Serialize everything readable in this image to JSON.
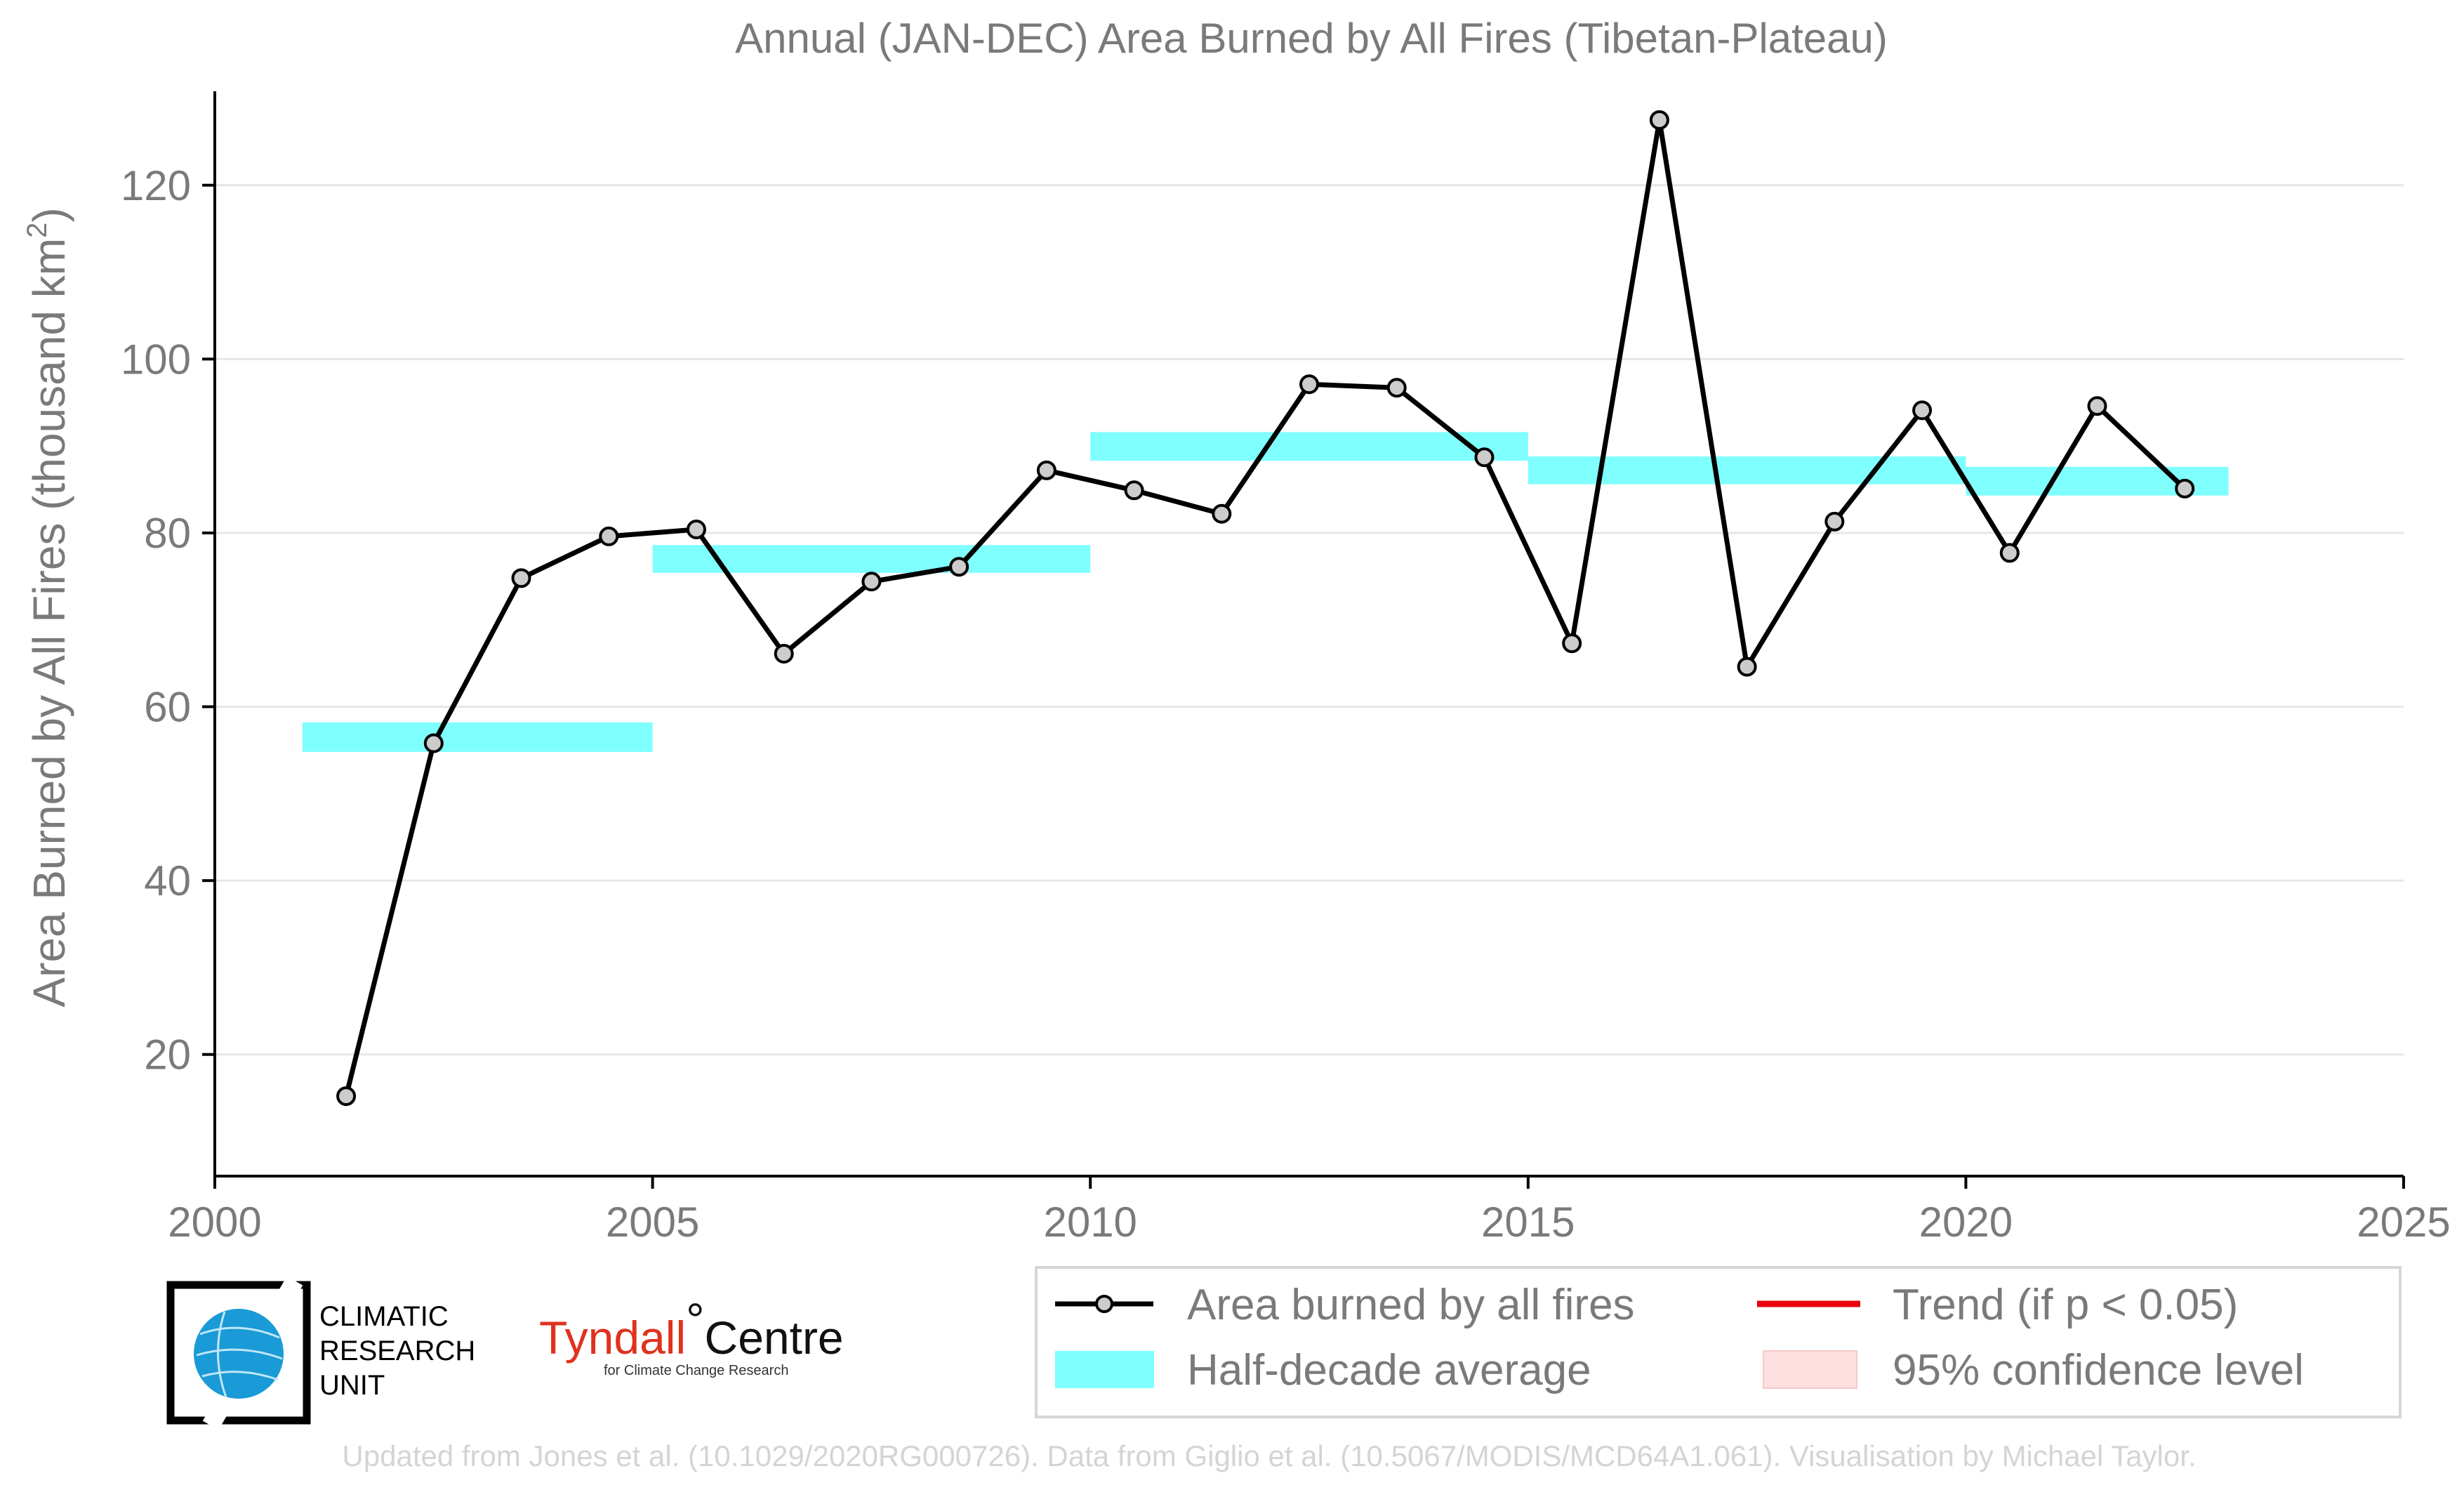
{
  "chart_data": {
    "type": "line",
    "title": "Annual (JAN-DEC) Area Burned by All Fires (Tibetan-Plateau)",
    "ylabel": "Area Burned by All Fires (thousand km",
    "ylabel_sup": "2",
    "ylabel_end": ")",
    "xlabel": "",
    "xlim": [
      2000,
      2025
    ],
    "ylim": [
      6,
      130
    ],
    "xticks": [
      2000,
      2005,
      2010,
      2015,
      2020,
      2025
    ],
    "yticks": [
      20,
      40,
      60,
      80,
      100,
      120
    ],
    "grid": true,
    "series": [
      {
        "name": "Area burned by all fires",
        "color": "#000000",
        "marker_fill": "#cccccc",
        "x": [
          2001.5,
          2002.5,
          2003.5,
          2004.5,
          2005.5,
          2006.5,
          2007.5,
          2008.5,
          2009.5,
          2010.5,
          2011.5,
          2012.5,
          2013.5,
          2014.5,
          2015.5,
          2016.5,
          2017.5,
          2018.5,
          2019.5,
          2020.5,
          2021.5,
          2022.5
        ],
        "values": [
          15.2,
          55.8,
          74.8,
          79.6,
          80.4,
          66.1,
          74.4,
          76.1,
          87.2,
          84.9,
          82.2,
          97.1,
          96.7,
          88.7,
          67.3,
          127.5,
          64.6,
          81.3,
          94.1,
          77.7,
          94.6,
          85.1
        ]
      }
    ],
    "half_decade_average": {
      "name": "Half-decade average",
      "color": "#80ffff",
      "segments": [
        {
          "x0": 2001,
          "x1": 2005,
          "low": 54.8,
          "high": 58.2
        },
        {
          "x0": 2005,
          "x1": 2010,
          "low": 75.4,
          "high": 78.6
        },
        {
          "x0": 2010,
          "x1": 2015,
          "low": 88.3,
          "high": 91.6
        },
        {
          "x0": 2015,
          "x1": 2020,
          "low": 85.6,
          "high": 88.8
        },
        {
          "x0": 2020,
          "x1": 2023,
          "low": 84.3,
          "high": 87.6
        }
      ]
    },
    "legend": {
      "placement": "bottom-right",
      "entries": [
        {
          "label": "Area burned by all fires",
          "kind": "line-marker",
          "color": "#000000"
        },
        {
          "label": "Trend (if p < 0.05)",
          "kind": "line",
          "color": "#e8000b"
        },
        {
          "label": "Half-decade average",
          "kind": "patch",
          "color": "#80ffff"
        },
        {
          "label": "95% confidence level",
          "kind": "patch",
          "color": "#ffe0e0"
        }
      ]
    },
    "footer": "Updated from Jones et al. (10.1029/2020RG000726). Data from Giglio et al. (10.5067/MODIS/MCD64A1.061). Visualisation by Michael Taylor."
  },
  "logos": {
    "cru": [
      "CLIMATIC",
      "RESEARCH",
      "UNIT"
    ],
    "tyndall_main": "Tyndall",
    "tyndall_degree": "°",
    "tyndall_centre": "Centre",
    "tyndall_sub": "for Climate Change Research"
  }
}
